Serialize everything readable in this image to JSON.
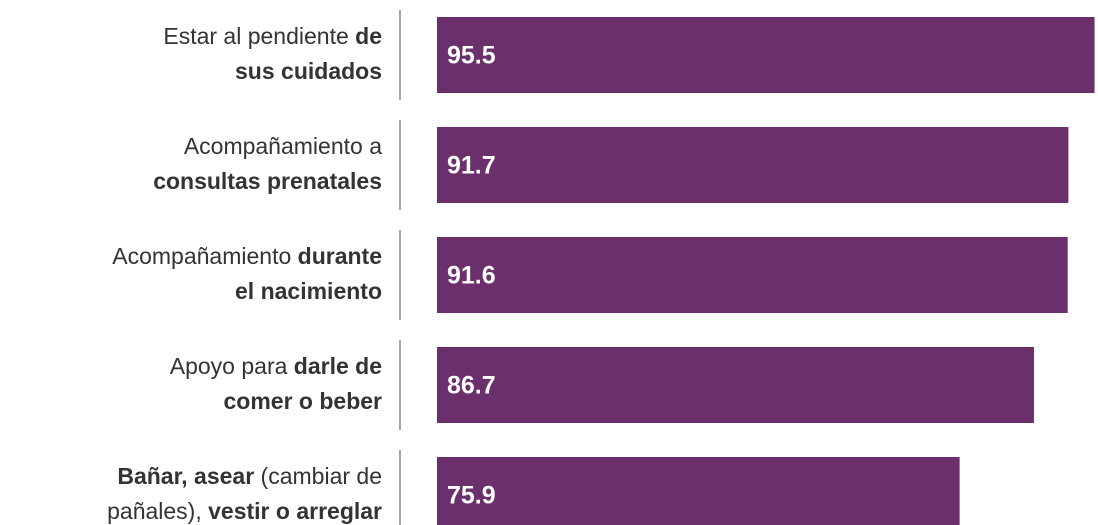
{
  "chart_data": {
    "type": "bar",
    "orientation": "horizontal",
    "categories": [
      [
        [
          {
            "text": "Estar al pendiente ",
            "bold": false
          },
          {
            "text": "de",
            "bold": true
          }
        ],
        [
          {
            "text": "sus cuidados",
            "bold": true
          }
        ]
      ],
      [
        [
          {
            "text": "Acompañamiento a",
            "bold": false
          }
        ],
        [
          {
            "text": "consultas prenatales",
            "bold": true
          }
        ]
      ],
      [
        [
          {
            "text": "Acompañamiento ",
            "bold": false
          },
          {
            "text": "durante",
            "bold": true
          }
        ],
        [
          {
            "text": "el nacimiento",
            "bold": true
          }
        ]
      ],
      [
        [
          {
            "text": "Apoyo para ",
            "bold": false
          },
          {
            "text": "darle de",
            "bold": true
          }
        ],
        [
          {
            "text": "comer o beber",
            "bold": true
          }
        ]
      ],
      [
        [
          {
            "text": "Bañar, asear",
            "bold": true
          },
          {
            "text": " (cambiar de",
            "bold": false
          }
        ],
        [
          {
            "text": "pañales), ",
            "bold": false
          },
          {
            "text": "vestir o arreglar",
            "bold": true
          }
        ]
      ]
    ],
    "values": [
      95.5,
      91.7,
      91.6,
      86.7,
      75.9
    ],
    "color": "#6b2f6b",
    "xlim": [
      0,
      96
    ]
  }
}
